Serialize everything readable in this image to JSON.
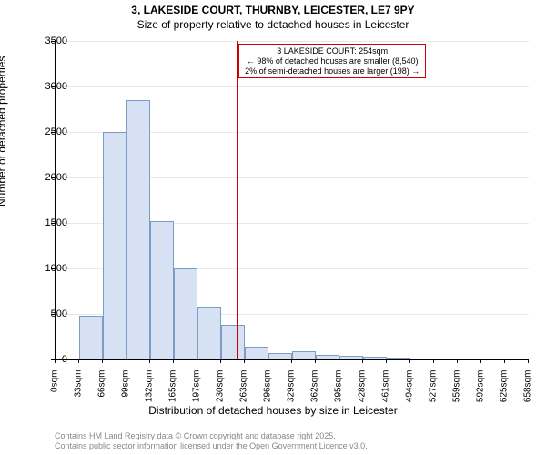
{
  "chart": {
    "type": "histogram",
    "title_main": "3, LAKESIDE COURT, THURNBY, LEICESTER, LE7 9PY",
    "title_sub": "Size of property relative to detached houses in Leicester",
    "title_fontsize": 12,
    "ylabel": "Number of detached properties",
    "xlabel": "Distribution of detached houses by size in Leicester",
    "label_fontsize": 12,
    "ylim": [
      0,
      3500
    ],
    "yticks": [
      0,
      500,
      1000,
      1500,
      2000,
      2500,
      3000,
      3500
    ],
    "xticks": [
      "0sqm",
      "33sqm",
      "66sqm",
      "99sqm",
      "132sqm",
      "165sqm",
      "197sqm",
      "230sqm",
      "263sqm",
      "296sqm",
      "329sqm",
      "362sqm",
      "395sqm",
      "428sqm",
      "461sqm",
      "494sqm",
      "527sqm",
      "559sqm",
      "592sqm",
      "625sqm",
      "658sqm"
    ],
    "values": [
      0,
      480,
      2500,
      2850,
      1520,
      1000,
      580,
      380,
      140,
      70,
      90,
      50,
      40,
      30,
      20,
      0,
      0,
      0,
      0,
      0
    ],
    "bar_color": "#d6e2f3",
    "bar_border_color": "#7a9cc6",
    "background_color": "#ffffff",
    "grid_color": "#e8e8e8",
    "reference_line_color": "#cc0000",
    "reference_value": 254,
    "reference_box": {
      "line1": "3 LAKESIDE COURT: 254sqm",
      "line2": "← 98% of detached houses are smaller (8,540)",
      "line3": "2% of semi-detached houses are larger (198) →"
    },
    "footer_line1": "Contains HM Land Registry data © Crown copyright and database right 2025.",
    "footer_line2": "Contains public sector information licensed under the Open Government Licence v3.0.",
    "footer_color": "#888888",
    "tick_fontsize": 10
  }
}
